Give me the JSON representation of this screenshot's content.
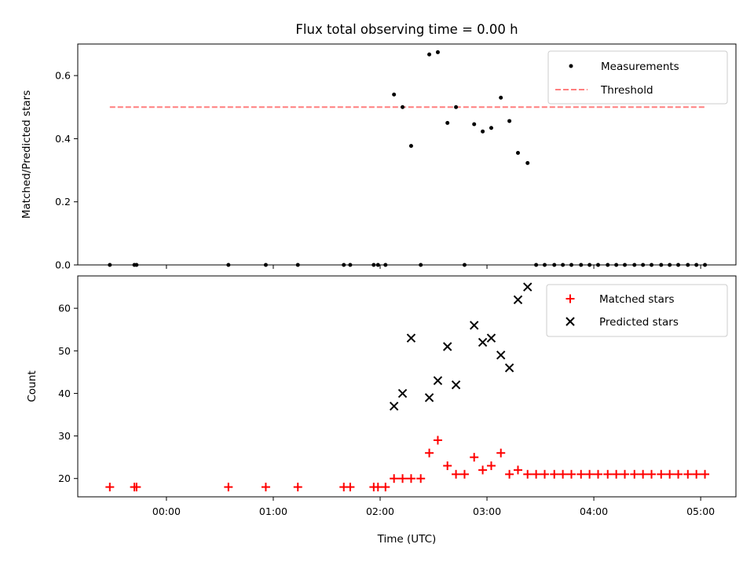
{
  "chart_data": [
    {
      "type": "scatter",
      "title": "Flux total observing time = 0.00 h",
      "xlabel": "",
      "ylabel": "Matched/Predicted stars",
      "ylim": [
        0,
        0.7
      ],
      "xlim_hours": [
        -0.83,
        5.33
      ],
      "yticks": [
        {
          "value": 0.0,
          "label": "0.0"
        },
        {
          "value": 0.2,
          "label": "0.2"
        },
        {
          "value": 0.4,
          "label": "0.4"
        },
        {
          "value": 0.6,
          "label": "0.6"
        }
      ],
      "legend_position": "upper right",
      "series": [
        {
          "name": "Measurements",
          "marker": "dot",
          "color": "#000000",
          "x_hours": [
            -0.53,
            -0.3,
            -0.28,
            0.58,
            0.93,
            1.23,
            1.66,
            1.72,
            1.94,
            1.98,
            2.05,
            2.13,
            2.21,
            2.29,
            2.38,
            2.46,
            2.54,
            2.63,
            2.71,
            2.79,
            2.88,
            2.96,
            3.04,
            3.13,
            3.21,
            3.29,
            3.38,
            3.46,
            3.54,
            3.63,
            3.71,
            3.79,
            3.88,
            3.96,
            4.04,
            4.13,
            4.21,
            4.29,
            4.38,
            4.46,
            4.54,
            4.63,
            4.71,
            4.79,
            4.88,
            4.96,
            5.04
          ],
          "y": [
            0,
            0,
            0,
            0,
            0,
            0,
            0,
            0,
            0,
            0,
            0,
            0.54,
            0.5,
            0.377,
            0,
            0.667,
            0.674,
            0.45,
            0.5,
            0,
            0.446,
            0.423,
            0.434,
            0.53,
            0.456,
            0.355,
            0.323,
            0,
            0,
            0,
            0,
            0,
            0,
            0,
            0,
            0,
            0,
            0,
            0,
            0,
            0,
            0,
            0,
            0,
            0,
            0,
            0
          ]
        },
        {
          "name": "Threshold",
          "style": "dashed",
          "color": "#ff7f7f",
          "x_hours": [
            -0.53,
            5.04
          ],
          "y": [
            0.5,
            0.5
          ]
        }
      ]
    },
    {
      "type": "scatter",
      "title": "",
      "xlabel": "Time (UTC)",
      "ylabel": "Count",
      "ylim": [
        15.7,
        67.6
      ],
      "xlim_hours": [
        -0.83,
        5.33
      ],
      "xticks": [
        {
          "value": 0,
          "label": "00:00"
        },
        {
          "value": 1,
          "label": "01:00"
        },
        {
          "value": 2,
          "label": "02:00"
        },
        {
          "value": 3,
          "label": "03:00"
        },
        {
          "value": 4,
          "label": "04:00"
        },
        {
          "value": 5,
          "label": "05:00"
        }
      ],
      "yticks": [
        {
          "value": 20,
          "label": "20"
        },
        {
          "value": 30,
          "label": "30"
        },
        {
          "value": 40,
          "label": "40"
        },
        {
          "value": 50,
          "label": "50"
        },
        {
          "value": 60,
          "label": "60"
        }
      ],
      "legend_position": "upper right",
      "series": [
        {
          "name": "Matched stars",
          "marker": "plus",
          "color": "#ff0000",
          "x_hours": [
            -0.53,
            -0.3,
            -0.28,
            0.58,
            0.93,
            1.23,
            1.66,
            1.72,
            1.94,
            1.98,
            2.05,
            2.13,
            2.21,
            2.29,
            2.38,
            2.46,
            2.54,
            2.63,
            2.71,
            2.79,
            2.88,
            2.96,
            3.04,
            3.13,
            3.21,
            3.29,
            3.38,
            3.46,
            3.54,
            3.63,
            3.71,
            3.79,
            3.88,
            3.96,
            4.04,
            4.13,
            4.21,
            4.29,
            4.38,
            4.46,
            4.54,
            4.63,
            4.71,
            4.79,
            4.88,
            4.96,
            5.04
          ],
          "y": [
            18,
            18,
            18,
            18,
            18,
            18,
            18,
            18,
            18,
            18,
            18,
            20,
            20,
            20,
            20,
            26,
            29,
            23,
            21,
            21,
            25,
            22,
            23,
            26,
            21,
            22,
            21,
            21,
            21,
            21,
            21,
            21,
            21,
            21,
            21,
            21,
            21,
            21,
            21,
            21,
            21,
            21,
            21,
            21,
            21,
            21,
            21
          ]
        },
        {
          "name": "Predicted stars",
          "marker": "x",
          "color": "#000000",
          "x_hours": [
            2.13,
            2.21,
            2.29,
            2.46,
            2.54,
            2.63,
            2.71,
            2.88,
            2.96,
            3.04,
            3.13,
            3.21,
            3.29,
            3.38
          ],
          "y": [
            37,
            40,
            53,
            39,
            43,
            51,
            42,
            56,
            52,
            53,
            49,
            46,
            62,
            65
          ]
        }
      ]
    }
  ]
}
